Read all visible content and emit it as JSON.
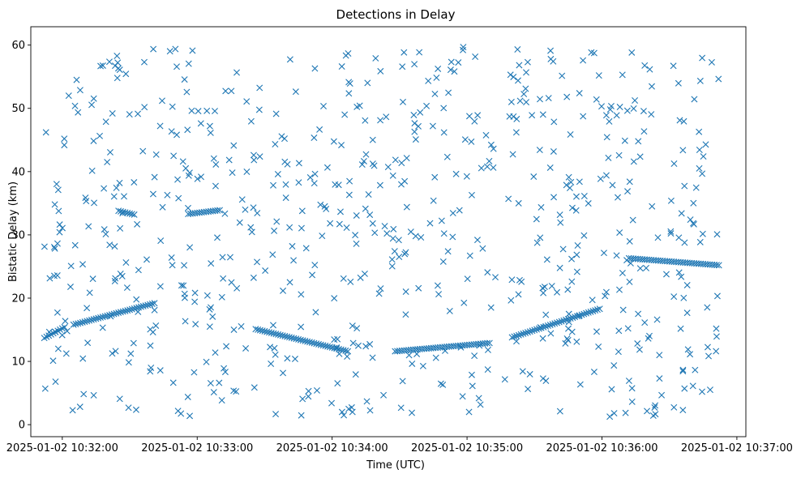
{
  "chart_data": {
    "type": "scatter",
    "title": "Detections in Delay",
    "xlabel": "Time (UTC)",
    "ylabel": "Bistatic Delay (km)",
    "marker": "x",
    "color": "#1f77b4",
    "grid": false,
    "legend": "none",
    "x_ticks": [
      "2025-01-02 10:32:00",
      "2025-01-02 10:33:00",
      "2025-01-02 10:34:00",
      "2025-01-02 10:35:00",
      "2025-01-02 10:36:00",
      "2025-01-02 10:37:00"
    ],
    "y_ticks": [
      0,
      10,
      20,
      30,
      40,
      50,
      60
    ],
    "xlim": [
      "2025-01-02 10:31:46",
      "2025-01-02 10:37:04"
    ],
    "ylim": [
      -1.9,
      62.9
    ],
    "x_range_of_detections": [
      "2025-01-02 10:31:52",
      "2025-01-02 10:36:52"
    ],
    "scan_interval_s": 1,
    "tracks": [
      {
        "description": "rising track",
        "start": "2025-01-02 10:31:52",
        "end": "2025-01-02 10:32:01",
        "delay_start": 13.7,
        "delay_end": 15.4
      },
      {
        "description": "rising track",
        "start": "2025-01-02 10:32:05",
        "end": "2025-01-02 10:32:41",
        "delay_start": 15.8,
        "delay_end": 19.2
      },
      {
        "description": "flat track",
        "start": "2025-01-02 10:32:56",
        "end": "2025-01-02 10:33:10",
        "delay_start": 33.3,
        "delay_end": 33.9
      },
      {
        "description": "flat track",
        "start": "2025-01-02 10:32:25",
        "end": "2025-01-02 10:32:32",
        "delay_start": 33.8,
        "delay_end": 33.2
      },
      {
        "description": "descending track",
        "start": "2025-01-02 10:33:26",
        "end": "2025-01-02 10:34:07",
        "delay_start": 15.1,
        "delay_end": 11.6
      },
      {
        "description": "rising track",
        "start": "2025-01-02 10:34:28",
        "end": "2025-01-02 10:35:10",
        "delay_start": 11.6,
        "delay_end": 12.9
      },
      {
        "description": "rising track",
        "start": "2025-01-02 10:35:20",
        "end": "2025-01-02 10:35:59",
        "delay_start": 13.8,
        "delay_end": 18.3
      },
      {
        "description": "flat track",
        "start": "2025-01-02 10:36:12",
        "end": "2025-01-02 10:36:52",
        "delay_start": 26.3,
        "delay_end": 25.2
      }
    ]
  }
}
